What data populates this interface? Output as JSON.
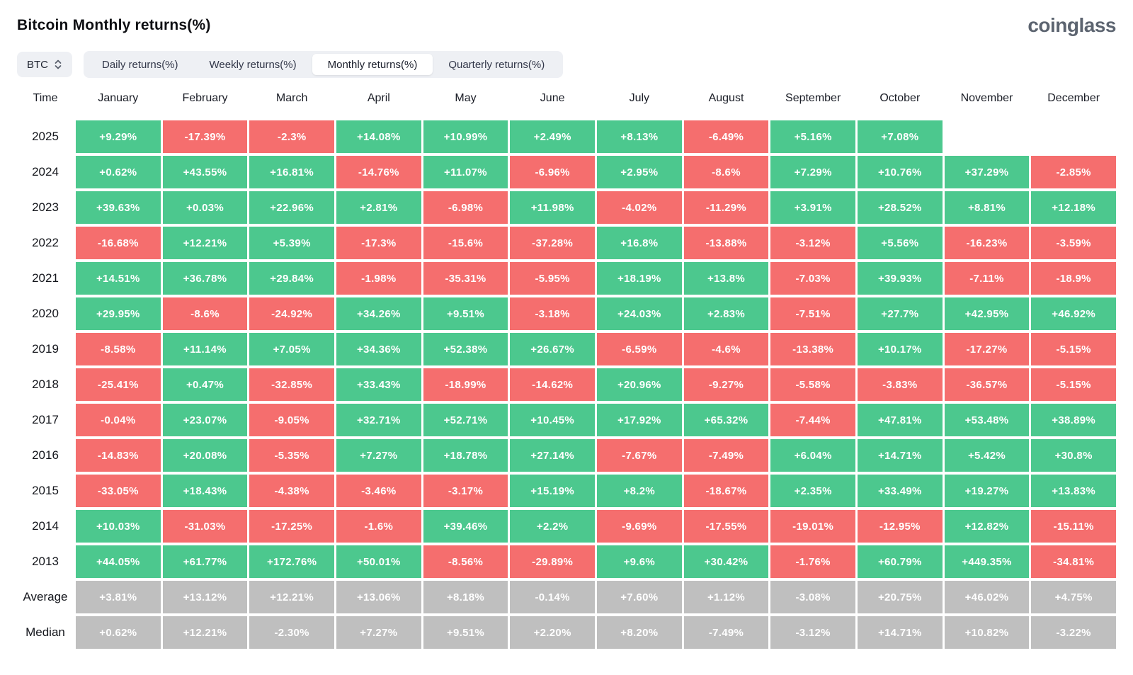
{
  "header": {
    "title": "Bitcoin Monthly returns(%)",
    "logo": "coinglass"
  },
  "controls": {
    "symbol": "BTC",
    "symbol_icon": "updown-chevron-icon",
    "tabs": [
      {
        "label": "Daily returns(%)",
        "active": false
      },
      {
        "label": "Weekly returns(%)",
        "active": false
      },
      {
        "label": "Monthly returns(%)",
        "active": true
      },
      {
        "label": "Quarterly returns(%)",
        "active": false
      }
    ]
  },
  "colors": {
    "positive": "#4CC88E",
    "negative": "#F56E6E",
    "summary": "#BFBFBF"
  },
  "table": {
    "time_header": "Time",
    "months": [
      "January",
      "February",
      "March",
      "April",
      "May",
      "June",
      "July",
      "August",
      "September",
      "October",
      "November",
      "December"
    ],
    "rows": [
      {
        "label": "2025",
        "type": "year",
        "values": [
          "+9.29%",
          "-17.39%",
          "-2.3%",
          "+14.08%",
          "+10.99%",
          "+2.49%",
          "+8.13%",
          "-6.49%",
          "+5.16%",
          "+7.08%",
          null,
          null
        ]
      },
      {
        "label": "2024",
        "type": "year",
        "values": [
          "+0.62%",
          "+43.55%",
          "+16.81%",
          "-14.76%",
          "+11.07%",
          "-6.96%",
          "+2.95%",
          "-8.6%",
          "+7.29%",
          "+10.76%",
          "+37.29%",
          "-2.85%"
        ]
      },
      {
        "label": "2023",
        "type": "year",
        "values": [
          "+39.63%",
          "+0.03%",
          "+22.96%",
          "+2.81%",
          "-6.98%",
          "+11.98%",
          "-4.02%",
          "-11.29%",
          "+3.91%",
          "+28.52%",
          "+8.81%",
          "+12.18%"
        ]
      },
      {
        "label": "2022",
        "type": "year",
        "values": [
          "-16.68%",
          "+12.21%",
          "+5.39%",
          "-17.3%",
          "-15.6%",
          "-37.28%",
          "+16.8%",
          "-13.88%",
          "-3.12%",
          "+5.56%",
          "-16.23%",
          "-3.59%"
        ]
      },
      {
        "label": "2021",
        "type": "year",
        "values": [
          "+14.51%",
          "+36.78%",
          "+29.84%",
          "-1.98%",
          "-35.31%",
          "-5.95%",
          "+18.19%",
          "+13.8%",
          "-7.03%",
          "+39.93%",
          "-7.11%",
          "-18.9%"
        ]
      },
      {
        "label": "2020",
        "type": "year",
        "values": [
          "+29.95%",
          "-8.6%",
          "-24.92%",
          "+34.26%",
          "+9.51%",
          "-3.18%",
          "+24.03%",
          "+2.83%",
          "-7.51%",
          "+27.7%",
          "+42.95%",
          "+46.92%"
        ]
      },
      {
        "label": "2019",
        "type": "year",
        "values": [
          "-8.58%",
          "+11.14%",
          "+7.05%",
          "+34.36%",
          "+52.38%",
          "+26.67%",
          "-6.59%",
          "-4.6%",
          "-13.38%",
          "+10.17%",
          "-17.27%",
          "-5.15%"
        ]
      },
      {
        "label": "2018",
        "type": "year",
        "values": [
          "-25.41%",
          "+0.47%",
          "-32.85%",
          "+33.43%",
          "-18.99%",
          "-14.62%",
          "+20.96%",
          "-9.27%",
          "-5.58%",
          "-3.83%",
          "-36.57%",
          "-5.15%"
        ]
      },
      {
        "label": "2017",
        "type": "year",
        "values": [
          "-0.04%",
          "+23.07%",
          "-9.05%",
          "+32.71%",
          "+52.71%",
          "+10.45%",
          "+17.92%",
          "+65.32%",
          "-7.44%",
          "+47.81%",
          "+53.48%",
          "+38.89%"
        ]
      },
      {
        "label": "2016",
        "type": "year",
        "values": [
          "-14.83%",
          "+20.08%",
          "-5.35%",
          "+7.27%",
          "+18.78%",
          "+27.14%",
          "-7.67%",
          "-7.49%",
          "+6.04%",
          "+14.71%",
          "+5.42%",
          "+30.8%"
        ]
      },
      {
        "label": "2015",
        "type": "year",
        "values": [
          "-33.05%",
          "+18.43%",
          "-4.38%",
          "-3.46%",
          "-3.17%",
          "+15.19%",
          "+8.2%",
          "-18.67%",
          "+2.35%",
          "+33.49%",
          "+19.27%",
          "+13.83%"
        ]
      },
      {
        "label": "2014",
        "type": "year",
        "values": [
          "+10.03%",
          "-31.03%",
          "-17.25%",
          "-1.6%",
          "+39.46%",
          "+2.2%",
          "-9.69%",
          "-17.55%",
          "-19.01%",
          "-12.95%",
          "+12.82%",
          "-15.11%"
        ]
      },
      {
        "label": "2013",
        "type": "year",
        "values": [
          "+44.05%",
          "+61.77%",
          "+172.76%",
          "+50.01%",
          "-8.56%",
          "-29.89%",
          "+9.6%",
          "+30.42%",
          "-1.76%",
          "+60.79%",
          "+449.35%",
          "-34.81%"
        ]
      },
      {
        "label": "Average",
        "type": "summary",
        "values": [
          "+3.81%",
          "+13.12%",
          "+12.21%",
          "+13.06%",
          "+8.18%",
          "-0.14%",
          "+7.60%",
          "+1.12%",
          "-3.08%",
          "+20.75%",
          "+46.02%",
          "+4.75%"
        ]
      },
      {
        "label": "Median",
        "type": "summary",
        "values": [
          "+0.62%",
          "+12.21%",
          "-2.30%",
          "+7.27%",
          "+9.51%",
          "+2.20%",
          "+8.20%",
          "-7.49%",
          "-3.12%",
          "+14.71%",
          "+10.82%",
          "-3.22%"
        ]
      }
    ]
  }
}
